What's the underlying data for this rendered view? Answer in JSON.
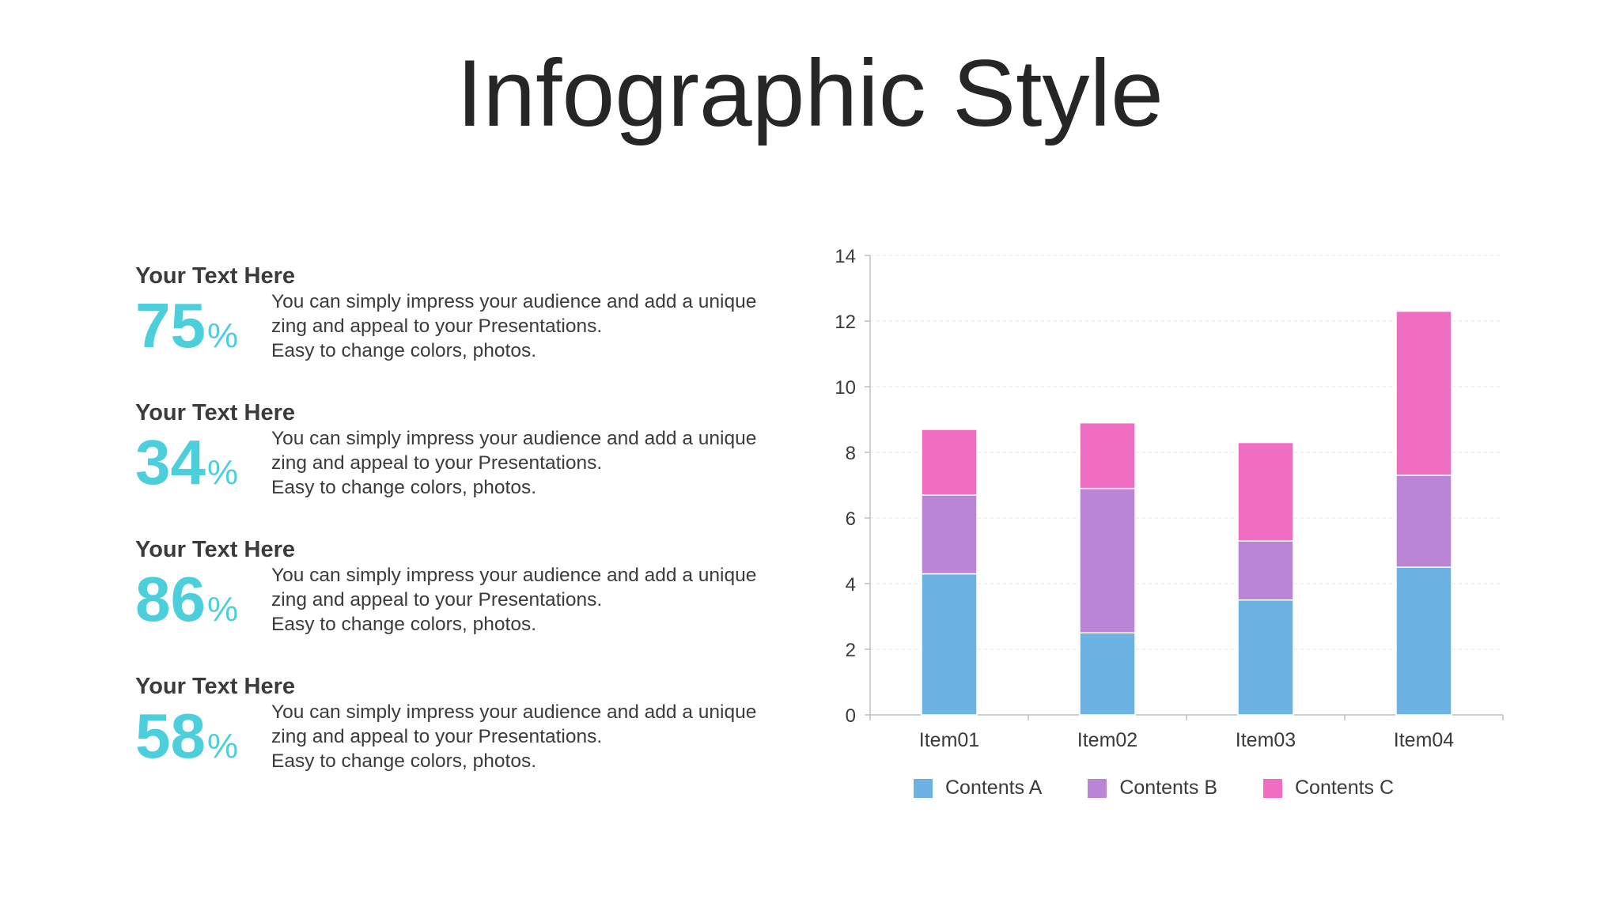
{
  "title": "Infographic Style",
  "items": [
    {
      "heading": "Your Text Here",
      "percent": "75",
      "sign": "%",
      "line1": "You can simply impress your audience and add a unique",
      "line2": "zing and appeal to your Presentations.",
      "line3": "Easy to change colors, photos."
    },
    {
      "heading": "Your Text Here",
      "percent": "34",
      "sign": "%",
      "line1": "You can simply impress your audience and add a unique",
      "line2": "zing and appeal to your Presentations.",
      "line3": "Easy to change colors, photos."
    },
    {
      "heading": "Your Text Here",
      "percent": "86",
      "sign": "%",
      "line1": "You can simply impress your audience and add a unique",
      "line2": "zing and appeal to your Presentations.",
      "line3": "Easy to change colors, photos."
    },
    {
      "heading": "Your Text Here",
      "percent": "58",
      "sign": "%",
      "line1": "You can simply impress your audience and add a unique",
      "line2": "zing and appeal to your Presentations.",
      "line3": "Easy to change colors, photos."
    }
  ],
  "colors": {
    "accent": "#4dcfdb",
    "contents_a": "#6cb2e2",
    "contents_b": "#b985d4",
    "contents_c": "#ef6ec2"
  },
  "chart_data": {
    "type": "bar",
    "stacked": true,
    "categories": [
      "Item01",
      "Item02",
      "Item03",
      "Item04"
    ],
    "series": [
      {
        "name": "Contents A",
        "values": [
          4.3,
          2.5,
          3.5,
          4.5
        ],
        "color": "#6cb2e2"
      },
      {
        "name": "Contents B",
        "values": [
          2.4,
          4.4,
          1.8,
          2.8
        ],
        "color": "#b985d4"
      },
      {
        "name": "Contents C",
        "values": [
          2.0,
          2.0,
          3.0,
          5.0
        ],
        "color": "#ef6ec2"
      }
    ],
    "ylim": [
      0,
      14
    ],
    "yticks": [
      0,
      2,
      4,
      6,
      8,
      10,
      12,
      14
    ],
    "grid": true,
    "legend": "bottom"
  }
}
